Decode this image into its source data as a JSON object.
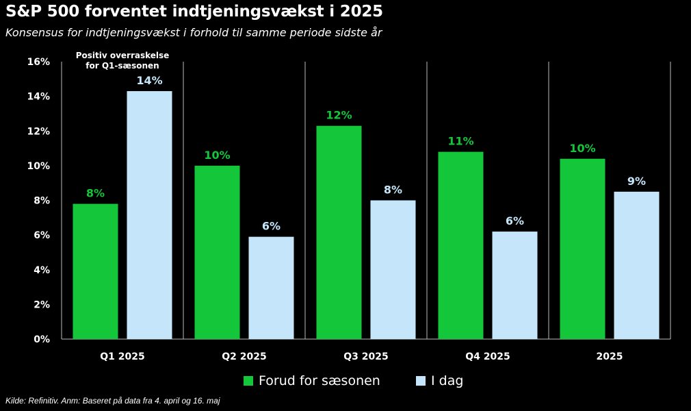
{
  "chart_data": {
    "type": "bar",
    "title": "S&P 500 forventet indtjeningsvækst i 2025",
    "subtitle": "Konsensus for indtjeningsvækst i forhold til samme periode sidste år",
    "categories": [
      "Q1 2025",
      "Q2 2025",
      "Q3 2025",
      "Q4 2025",
      "2025"
    ],
    "series": [
      {
        "name": "Forud for sæsonen",
        "values": [
          7.8,
          10.0,
          12.3,
          10.8,
          10.4
        ],
        "labels": [
          "8%",
          "10%",
          "12%",
          "11%",
          "10%"
        ],
        "color": "#13c63a"
      },
      {
        "name": "I dag",
        "values": [
          14.3,
          5.9,
          8.0,
          6.2,
          8.5
        ],
        "labels": [
          "14%",
          "6%",
          "8%",
          "6%",
          "9%"
        ],
        "color": "#c5e6fa"
      }
    ],
    "ylim": [
      0,
      16
    ],
    "yticks": [
      "0%",
      "2%",
      "4%",
      "6%",
      "8%",
      "10%",
      "12%",
      "14%",
      "16%"
    ],
    "annotation": "Positiv overraskelse\nfor Q1-sæsonen",
    "legend_position": "bottom-center",
    "grid": false
  },
  "source": "Kilde: Refinitiv. Anm: Baseret på data fra 4. april og 16. maj"
}
